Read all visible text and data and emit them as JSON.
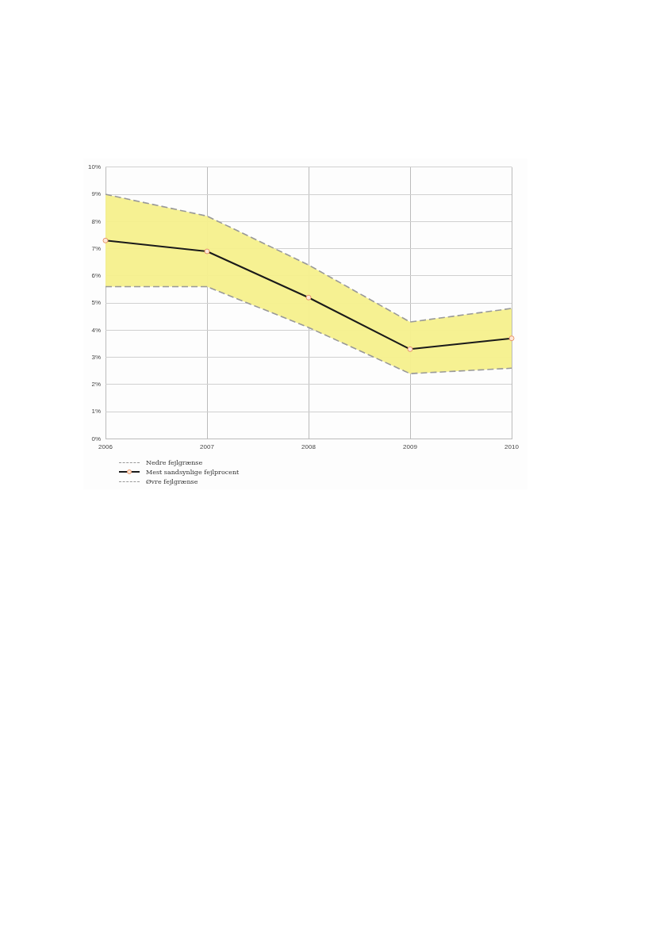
{
  "chart_data": {
    "type": "line",
    "categories": [
      "2006",
      "2007",
      "2008",
      "2009",
      "2010"
    ],
    "series": [
      {
        "name": "Nedre fejlgrænse",
        "color": "#999999",
        "line_style": "dashed",
        "marker": "none",
        "values": [
          5.6,
          5.6,
          4.1,
          2.4,
          2.6
        ]
      },
      {
        "name": "Mest sandsynlige fejlprocent",
        "color": "#1a1a1a",
        "line_style": "solid",
        "marker": "circle",
        "values": [
          7.3,
          6.9,
          5.2,
          3.3,
          3.7
        ],
        "lower": [
          5.6,
          5.6,
          4.1,
          2.4,
          2.6
        ],
        "upper": [
          9.0,
          8.2,
          6.4,
          4.3,
          4.8
        ]
      },
      {
        "name": "Øvre fejlgrænse",
        "color": "#999999",
        "line_style": "dashed",
        "marker": "none",
        "values": [
          9.0,
          8.2,
          6.4,
          4.3,
          4.8
        ]
      }
    ],
    "ylim": [
      0,
      10
    ],
    "yticks": [
      {
        "value": 0,
        "label": "0%"
      },
      {
        "value": 1,
        "label": "1%"
      },
      {
        "value": 2,
        "label": "2%"
      },
      {
        "value": 3,
        "label": "3%"
      },
      {
        "value": 4,
        "label": "4%"
      },
      {
        "value": 5,
        "label": "5%"
      },
      {
        "value": 6,
        "label": "6%"
      },
      {
        "value": 7,
        "label": "7%"
      },
      {
        "value": 8,
        "label": "8%"
      },
      {
        "value": 9,
        "label": "9%"
      },
      {
        "value": 10,
        "label": "10%"
      }
    ],
    "grid": true,
    "legend": "bottom"
  }
}
